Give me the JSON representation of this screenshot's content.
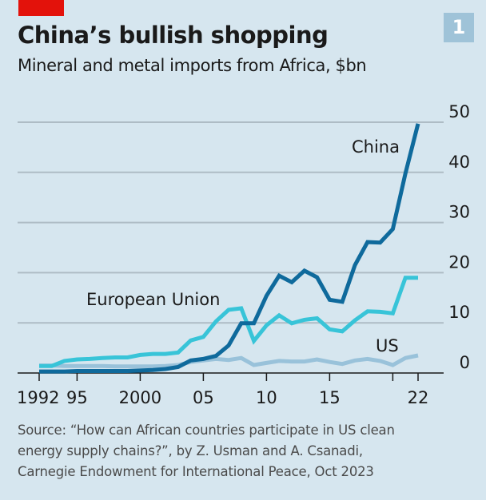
{
  "header": {
    "title": "China’s bullish shopping",
    "subtitle": "Mineral and metal imports from Africa, $bn",
    "badge": "1"
  },
  "source": [
    "Source: “How can African countries participate in US clean",
    "energy supply chains?”, by Z. Usman and A. Csanadi,",
    "Carnegie Endowment for International Peace, Oct 2023"
  ],
  "chart_data": {
    "type": "line",
    "title": "China’s bullish shopping",
    "subtitle": "Mineral and metal imports from Africa, $bn",
    "xlabel": "",
    "ylabel": "$bn",
    "xlim": [
      1992,
      2022
    ],
    "ylim": [
      0,
      50
    ],
    "yticks": [
      0,
      10,
      20,
      30,
      40,
      50
    ],
    "ytick_labels": [
      "0",
      "10",
      "20",
      "30",
      "40",
      "50"
    ],
    "xticks": [
      1992,
      1995,
      2000,
      2005,
      2010,
      2015,
      2020,
      2022
    ],
    "xtick_labels": [
      "1992",
      "95",
      "2000",
      "05",
      "10",
      "15",
      "",
      "22"
    ],
    "grid": true,
    "x": [
      1992,
      1993,
      1994,
      1995,
      1996,
      1997,
      1998,
      1999,
      2000,
      2001,
      2002,
      2003,
      2004,
      2005,
      2006,
      2007,
      2008,
      2009,
      2010,
      2011,
      2012,
      2013,
      2014,
      2015,
      2016,
      2017,
      2018,
      2019,
      2020,
      2021,
      2022
    ],
    "series": [
      {
        "name": "China",
        "color": "#0f6a9c",
        "values": [
          0.3,
          0.3,
          0.3,
          0.4,
          0.4,
          0.4,
          0.4,
          0.4,
          0.5,
          0.6,
          0.8,
          1.2,
          2.5,
          2.8,
          3.4,
          5.5,
          9.9,
          9.9,
          15.4,
          19.4,
          18.1,
          20.4,
          19.1,
          14.6,
          14.2,
          21.5,
          26.1,
          26.0,
          28.7,
          39.8,
          49.7
        ]
      },
      {
        "name": "European Union",
        "color": "#38c4d8",
        "values": [
          1.4,
          1.4,
          2.4,
          2.7,
          2.8,
          3.0,
          3.1,
          3.1,
          3.6,
          3.8,
          3.8,
          4.1,
          6.5,
          7.2,
          10.3,
          12.6,
          12.9,
          6.4,
          9.5,
          11.5,
          9.9,
          10.6,
          10.9,
          8.7,
          8.3,
          10.5,
          12.3,
          12.2,
          11.9,
          19.0,
          19.0
        ]
      },
      {
        "name": "US",
        "color": "#99c2da",
        "values": [
          1.5,
          1.5,
          1.4,
          1.4,
          1.4,
          1.4,
          1.3,
          1.3,
          1.3,
          1.3,
          1.4,
          1.6,
          2.2,
          2.5,
          2.8,
          2.6,
          3.0,
          1.6,
          2.0,
          2.4,
          2.3,
          2.3,
          2.7,
          2.2,
          1.8,
          2.5,
          2.8,
          2.4,
          1.6,
          3.0,
          3.5
        ]
      }
    ]
  }
}
